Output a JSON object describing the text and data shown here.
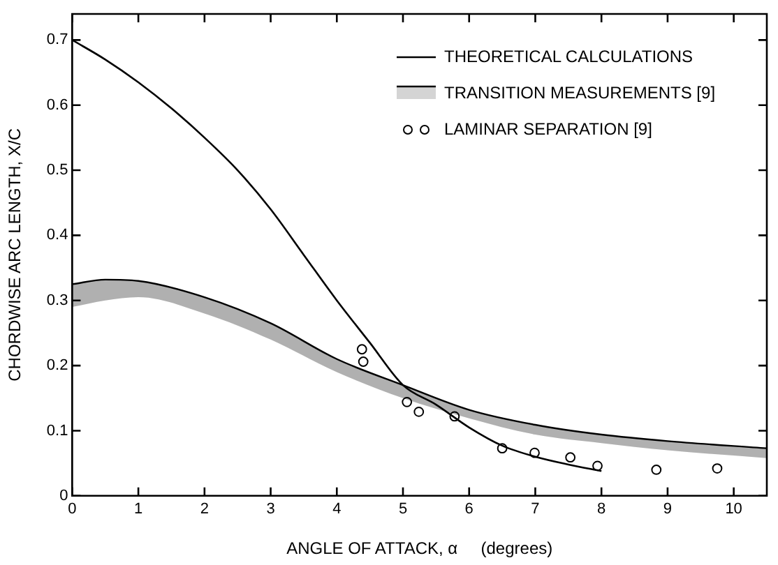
{
  "chart_data": {
    "type": "line",
    "xlabel": "ANGLE OF ATTACK, α     (degrees)",
    "ylabel": "CHORDWISE ARC LENGTH, X/C",
    "xlim": [
      0,
      10.5
    ],
    "xticks": [
      0,
      1,
      2,
      3,
      4,
      5,
      6,
      7,
      8,
      9,
      10
    ],
    "ylim": [
      0,
      0.74
    ],
    "yticks": [
      0,
      0.1,
      0.2,
      0.3,
      0.4,
      0.5,
      0.6,
      0.7
    ],
    "grid": false,
    "legend": "top right",
    "series": [
      {
        "name": "THEORETICAL CALCULATIONS",
        "type": "line",
        "color": "#000000",
        "marker": "none",
        "x": [
          0,
          0.5,
          1,
          1.5,
          2,
          2.5,
          3,
          3.5,
          4,
          4.5,
          5,
          5.5,
          6,
          6.5,
          7,
          7.5,
          8
        ],
        "values": [
          0.7,
          0.67,
          0.635,
          0.595,
          0.55,
          0.5,
          0.44,
          0.37,
          0.3,
          0.235,
          0.17,
          0.14,
          0.105,
          0.077,
          0.06,
          0.048,
          0.038
        ]
      },
      {
        "name": "TRANSITION MEASUREMENTS [9]",
        "type": "line",
        "color": "#000000",
        "x": [
          0,
          0.5,
          1,
          2,
          3,
          4,
          5,
          6,
          7,
          8,
          9,
          10.5
        ],
        "values": [
          0.325,
          0.332,
          0.33,
          0.305,
          0.265,
          0.21,
          0.17,
          0.132,
          0.109,
          0.094,
          0.084,
          0.073
        ],
        "lower": [
          0.29,
          0.3,
          0.305,
          0.28,
          0.24,
          0.19,
          0.15,
          0.119,
          0.094,
          0.081,
          0.07,
          0.058
        ],
        "upper": [
          0.325,
          0.332,
          0.33,
          0.305,
          0.265,
          0.21,
          0.17,
          0.132,
          0.109,
          0.094,
          0.084,
          0.073
        ]
      },
      {
        "name": "LAMINAR SEPARATION [9]",
        "type": "scatter",
        "color": "#000000",
        "marker": "circle",
        "x": [
          4.38,
          4.4,
          5.06,
          5.24,
          5.78,
          6.5,
          6.99,
          7.53,
          7.94,
          8.83,
          9.75
        ],
        "values": [
          0.225,
          0.206,
          0.144,
          0.129,
          0.122,
          0.073,
          0.066,
          0.059,
          0.046,
          0.04,
          0.042
        ]
      }
    ]
  }
}
